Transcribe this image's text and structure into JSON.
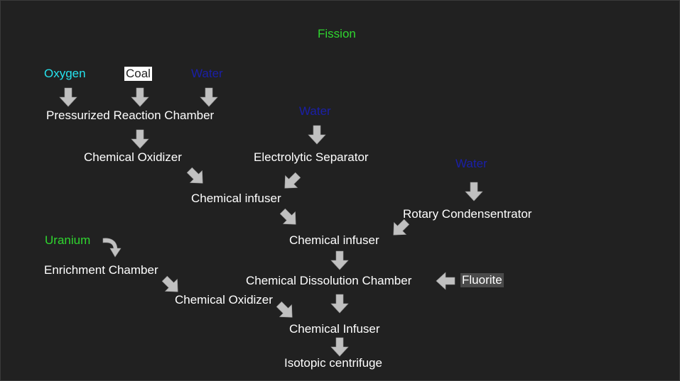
{
  "diagram": {
    "title": "Fission",
    "inputs": {
      "oxygen": "Oxygen",
      "coal": "Coal",
      "water_1": "Water",
      "water_2": "Water",
      "water_3": "Water",
      "uranium": "Uranium",
      "fluorite": "Fluorite"
    },
    "machines": {
      "pressurized_reaction_chamber": "Pressurized Reaction Chamber",
      "chemical_oxidizer_1": "Chemical Oxidizer",
      "electrolytic_separator": "Electrolytic Separator",
      "chemical_infuser_1": "Chemical infuser",
      "rotary_condensentrator": "Rotary Condensentrator",
      "chemical_infuser_2": "Chemical infuser",
      "enrichment_chamber": "Enrichment Chamber",
      "chemical_dissolution_chamber": "Chemical Dissolution Chamber",
      "chemical_oxidizer_2": "Chemical Oxidizer",
      "chemical_infuser_3": "Chemical Infuser",
      "isotopic_centrifuge": "Isotopic centrifuge"
    },
    "colors": {
      "background": "#212121",
      "title": "#2fd62f",
      "oxygen": "#25e3ee",
      "water": "#1a1fa8",
      "uranium": "#2fd62f",
      "text": "#ffffff",
      "arrow": "#c0c0c0"
    }
  }
}
